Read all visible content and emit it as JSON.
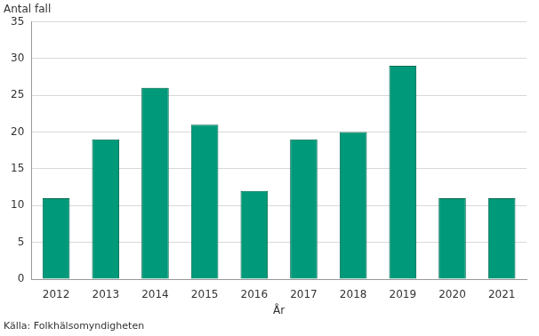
{
  "chart_data": {
    "type": "bar",
    "y_label": "Antal fall",
    "x_label": "År",
    "source": "Källa: Folkhälsomyndigheten",
    "categories": [
      "2012",
      "2013",
      "2014",
      "2015",
      "2016",
      "2017",
      "2018",
      "2019",
      "2020",
      "2021"
    ],
    "values": [
      11,
      19,
      26,
      21,
      12,
      19,
      20,
      29,
      11,
      11
    ],
    "color": "#00997a",
    "ylim": [
      0,
      35
    ],
    "yticks": [
      0,
      5,
      10,
      15,
      20,
      25,
      30,
      35
    ],
    "grid": true
  }
}
